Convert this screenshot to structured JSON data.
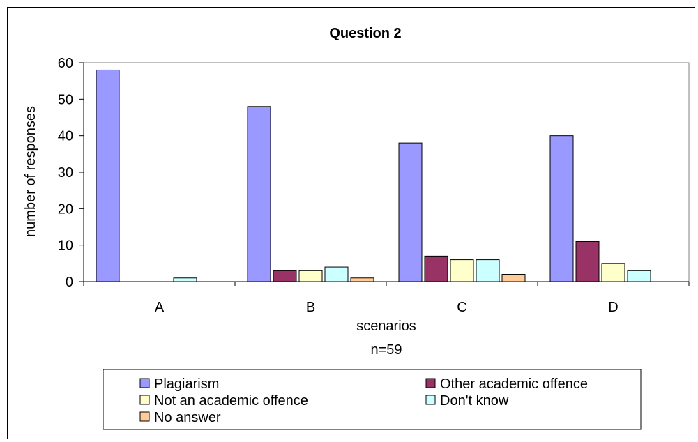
{
  "chart_data": {
    "type": "bar",
    "title": "Question 2",
    "xlabel": "scenarios",
    "note": "n=59",
    "ylabel": "number of responses",
    "ylim": [
      0,
      60
    ],
    "yticks": [
      0,
      10,
      20,
      30,
      40,
      50,
      60
    ],
    "categories": [
      "A",
      "B",
      "C",
      "D"
    ],
    "series": [
      {
        "name": "Plagiarism",
        "color": "#9999ff",
        "values": [
          58,
          48,
          38,
          40
        ]
      },
      {
        "name": "Other academic offence",
        "color": "#993366",
        "values": [
          0,
          3,
          7,
          11
        ]
      },
      {
        "name": "Not an academic offence",
        "color": "#ffffcc",
        "values": [
          0,
          3,
          6,
          5
        ]
      },
      {
        "name": "Don't know",
        "color": "#ccffff",
        "values": [
          1,
          4,
          6,
          3
        ]
      },
      {
        "name": "No answer",
        "color": "#ffcc99",
        "values": [
          0,
          1,
          2,
          0
        ]
      }
    ],
    "grid": false,
    "legend_position": "bottom"
  }
}
